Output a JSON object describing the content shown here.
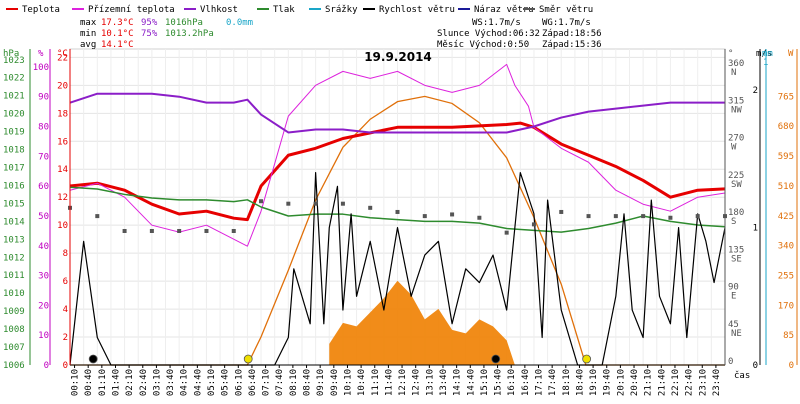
{
  "chart_data": {
    "type": "line",
    "title": "19.9.2014",
    "legend": [
      {
        "label": "Teplota",
        "color": "#e60000"
      },
      {
        "label": "Přízemní teplota",
        "color": "#dd22dd"
      },
      {
        "label": "Vlhkost",
        "color": "#8b1ec8"
      },
      {
        "label": "Tlak",
        "color": "#2e8b2e"
      },
      {
        "label": "Srážky",
        "color": "#1aa6c8"
      },
      {
        "label": "Rychlost větru",
        "color": "#000000"
      },
      {
        "label": "Náraz větru",
        "color": "#1a1a99"
      },
      {
        "label": "Směr větru",
        "color": "#555555"
      }
    ],
    "stats": {
      "max": {
        "label": "max",
        "temp": "17.3°C",
        "hum": "95%",
        "press": "1016hPa",
        "rain": "0.0mm"
      },
      "min": {
        "label": "min",
        "temp": "10.1°C",
        "hum": "75%",
        "press": "1013.2hPa"
      },
      "avg": {
        "label": "avg",
        "temp": "14.1°C"
      }
    },
    "info": {
      "ws": "WS:1.7m/s",
      "wg": "WG:1.7m/s",
      "sun_rise": "Slunce Východ:06:32",
      "sun_set": "Západ:18:56",
      "moon_rise": "Měsíc Východ:0:50",
      "moon_set": "Západ:15:36"
    },
    "axes": {
      "hpa": {
        "unit": "hPa",
        "ticks": [
          "1023",
          "1022",
          "1021",
          "1020",
          "1019",
          "1018",
          "1017",
          "1016",
          "1015",
          "1014",
          "1013",
          "1012",
          "1011",
          "1010",
          "1009",
          "1008",
          "1007",
          "1006"
        ]
      },
      "pct": {
        "unit": "%",
        "ticks": [
          "100",
          "90",
          "80",
          "70",
          "60",
          "50",
          "40",
          "30",
          "20",
          "10",
          "0"
        ]
      },
      "temp": {
        "unit": "°C",
        "ticks": [
          "22",
          "20",
          "18",
          "16",
          "14",
          "12",
          "10",
          "8",
          "6",
          "4",
          "2",
          "0"
        ]
      },
      "dir": {
        "unit": "°",
        "ticks": [
          "360 N",
          "315 NW",
          "270 W",
          "225 SW",
          "180 S",
          "135 SE",
          "90 E",
          "45 NE",
          "0"
        ]
      },
      "ms": {
        "unit": "m/s",
        "ticks": [
          "2",
          "1",
          "0"
        ]
      },
      "mm": {
        "unit": "mm",
        "ticks": [
          "1"
        ]
      },
      "w": {
        "unit": "W",
        "ticks": [
          "765",
          "680",
          "595",
          "510",
          "425",
          "340",
          "255",
          "170",
          "85",
          "0"
        ]
      },
      "xlabel": "čas",
      "x_ticks": [
        "00:10",
        "00:40",
        "01:10",
        "01:40",
        "02:10",
        "02:40",
        "03:10",
        "03:40",
        "04:10",
        "04:40",
        "05:10",
        "05:40",
        "06:10",
        "06:40",
        "07:10",
        "07:40",
        "08:10",
        "08:40",
        "09:10",
        "09:40",
        "10:10",
        "10:40",
        "11:10",
        "11:40",
        "12:10",
        "12:40",
        "13:10",
        "13:40",
        "14:10",
        "14:40",
        "15:10",
        "15:40",
        "16:10",
        "16:40",
        "17:10",
        "17:40",
        "18:10",
        "18:40",
        "19:10",
        "19:40",
        "20:10",
        "20:40",
        "21:10",
        "21:40",
        "22:10",
        "22:40",
        "23:10",
        "23:40"
      ]
    },
    "x_hours": [
      0,
      1,
      2,
      3,
      4,
      5,
      6,
      7,
      8,
      9,
      10,
      11,
      12,
      13,
      14,
      15,
      16,
      17,
      18,
      19,
      20,
      21,
      22,
      23,
      24
    ],
    "series": [
      {
        "name": "Teplota",
        "unit": "°C",
        "color": "#e60000",
        "x": [
          0,
          1,
          2,
          3,
          4,
          5,
          6,
          6.5,
          7,
          8,
          9,
          10,
          11,
          12,
          13,
          14,
          15,
          16,
          16.5,
          17,
          18,
          19,
          20,
          21,
          22,
          23,
          24
        ],
        "y": [
          12.8,
          13,
          12.5,
          11.5,
          10.8,
          11,
          10.5,
          10.4,
          12.8,
          15,
          15.5,
          16.2,
          16.6,
          17,
          17,
          17,
          17.1,
          17.2,
          17.3,
          17,
          15.8,
          15,
          14.2,
          13.2,
          12,
          12.5,
          12.6
        ]
      },
      {
        "name": "Přízemní teplota",
        "unit": "°C",
        "color": "#dd22dd",
        "x": [
          0,
          1,
          2,
          3,
          4,
          5,
          6,
          6.5,
          7,
          8,
          9,
          10,
          11,
          12,
          13,
          14,
          15,
          16,
          16.3,
          16.8,
          17,
          18,
          19,
          20,
          21,
          22,
          23,
          24
        ],
        "y": [
          12.5,
          13,
          12,
          10,
          9.5,
          10,
          9,
          8.5,
          11,
          17.8,
          20,
          21,
          20.5,
          21,
          20,
          19.5,
          20,
          21.5,
          20,
          18.5,
          17,
          15.5,
          14.5,
          12.5,
          11.5,
          11,
          12,
          12.3
        ]
      },
      {
        "name": "Vlhkost",
        "unit": "%",
        "color": "#8b1ec8",
        "x": [
          0,
          1,
          2,
          3,
          4,
          5,
          6,
          6.5,
          7,
          8,
          9,
          10,
          11,
          12,
          13,
          14,
          15,
          16,
          16.5,
          17,
          18,
          19,
          20,
          21,
          22,
          23,
          24
        ],
        "y": [
          88,
          91,
          91,
          91,
          90,
          88,
          88,
          89,
          84,
          78,
          79,
          79,
          78,
          78,
          78,
          78,
          78,
          78,
          79,
          80,
          83,
          85,
          86,
          87,
          88,
          88,
          88
        ]
      },
      {
        "name": "Tlak",
        "unit": "hPa",
        "color": "#2e8b2e",
        "x": [
          0,
          1,
          2,
          3,
          4,
          5,
          6,
          6.5,
          7,
          8,
          9,
          10,
          11,
          12,
          13,
          14,
          15,
          16,
          17,
          18,
          19,
          20,
          21,
          22,
          23,
          24
        ],
        "y": [
          1015.9,
          1015.8,
          1015.5,
          1015.3,
          1015.2,
          1015.2,
          1015.1,
          1015.2,
          1014.8,
          1014.3,
          1014.4,
          1014.4,
          1014.2,
          1014.1,
          1014,
          1014,
          1013.9,
          1013.6,
          1013.5,
          1013.4,
          1013.6,
          1013.9,
          1014.3,
          1014.0,
          1013.8,
          1013.7
        ]
      },
      {
        "name": "Rychlost větru",
        "unit": "m/s",
        "color": "#000000",
        "x": [
          0,
          0.5,
          1,
          1.5,
          2,
          3,
          4,
          4.5,
          5,
          6,
          6.5,
          7,
          7.5,
          8,
          8.2,
          8.5,
          8.8,
          9,
          9.3,
          9.5,
          9.8,
          10,
          10.3,
          10.5,
          11,
          11.5,
          12,
          12.5,
          13,
          13.5,
          14,
          14.5,
          15,
          15.5,
          16,
          16.5,
          17,
          17.3,
          17.5,
          18,
          18.3,
          18.6,
          19,
          19.5,
          20,
          20.3,
          20.6,
          21,
          21.3,
          21.6,
          22,
          22.3,
          22.6,
          23,
          23.3,
          23.6,
          24
        ],
        "y": [
          0,
          0.9,
          0.2,
          0,
          0,
          0,
          0,
          0,
          0,
          0,
          0,
          0,
          0,
          0.2,
          0.7,
          0.5,
          0.3,
          1.4,
          0.3,
          1.0,
          1.3,
          0.4,
          1.1,
          0.5,
          0.9,
          0.4,
          1.0,
          0.5,
          0.8,
          0.9,
          0.3,
          0.7,
          0.6,
          0.8,
          0.4,
          1.4,
          1.1,
          0.2,
          1.2,
          0.4,
          0.2,
          0,
          0,
          0,
          0.5,
          1.1,
          0.4,
          0.2,
          1.2,
          0.5,
          0.3,
          1.0,
          0.2,
          1.1,
          0.9,
          0.6,
          1.0
        ]
      },
      {
        "name": "Směr větru",
        "unit": "°",
        "color": "#555555",
        "x": [
          0,
          1,
          2,
          3,
          4,
          5,
          6,
          7,
          8,
          9,
          10,
          11,
          12,
          13,
          14,
          15,
          16,
          17,
          18,
          19,
          20,
          21,
          22,
          23,
          24
        ],
        "y": [
          190,
          180,
          162,
          162,
          162,
          162,
          162,
          198,
          195,
          195,
          195,
          190,
          185,
          180,
          182,
          178,
          160,
          170,
          185,
          180,
          180,
          180,
          178,
          180,
          180
        ]
      }
    ],
    "radiation": {
      "name": "Sluneční záření",
      "unit": "W",
      "color": "#e0700a",
      "x": [
        0,
        6.5,
        7,
        8,
        9,
        10,
        11,
        12,
        13,
        14,
        15,
        16,
        17,
        18,
        18.9,
        19,
        24
      ],
      "y": [
        0,
        0,
        80,
        270,
        470,
        620,
        700,
        750,
        765,
        745,
        690,
        590,
        420,
        230,
        0,
        0,
        0
      ]
    },
    "radiation_measured": {
      "color": "#f08000",
      "x": [
        9.5,
        10,
        10.5,
        11,
        11.5,
        12,
        12.5,
        13,
        13.5,
        14,
        14.5,
        15,
        15.5,
        16,
        16.3
      ],
      "y": [
        60,
        120,
        110,
        150,
        190,
        240,
        200,
        130,
        160,
        100,
        90,
        130,
        110,
        70,
        0
      ]
    },
    "markers": [
      {
        "name": "moon-marker",
        "hour": 0.85,
        "color": "#000000"
      },
      {
        "name": "sunrise-marker",
        "hour": 6.53,
        "color": "#f0e000"
      },
      {
        "name": "moonset-marker",
        "hour": 15.6,
        "color": "#000000"
      },
      {
        "name": "sunset-marker",
        "hour": 18.93,
        "color": "#f0e000"
      }
    ]
  }
}
